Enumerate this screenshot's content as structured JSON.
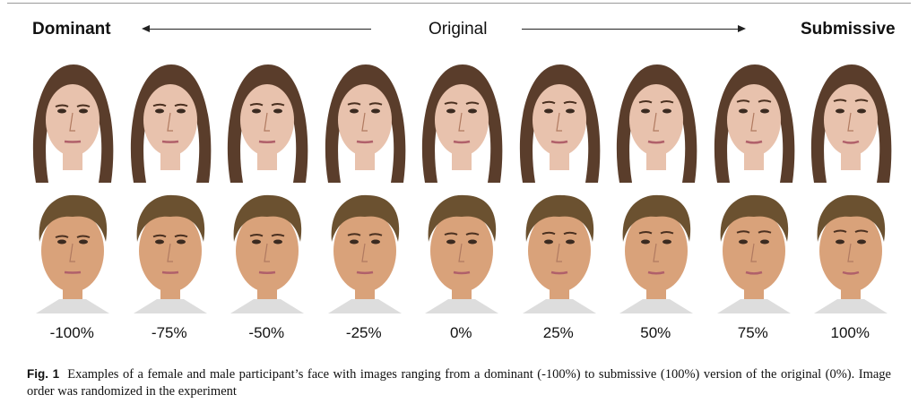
{
  "figure": {
    "header": {
      "left": "Dominant",
      "center": "Original",
      "right": "Submissive"
    },
    "levels": [
      "-100%",
      "-75%",
      "-50%",
      "-25%",
      "0%",
      "25%",
      "50%",
      "75%",
      "100%"
    ],
    "rows": [
      {
        "subject": "female",
        "skin": "#e8c2ad",
        "hair": "#5a3d2b"
      },
      {
        "subject": "male",
        "skin": "#d9a27a",
        "hair": "#6b5130"
      }
    ],
    "caption": {
      "label": "Fig. 1",
      "text": "Examples of a female and male participant’s face with images ranging from a dominant (-100%) to submissive (100%) version of the original (0%). Image order was randomized in the experiment"
    }
  }
}
